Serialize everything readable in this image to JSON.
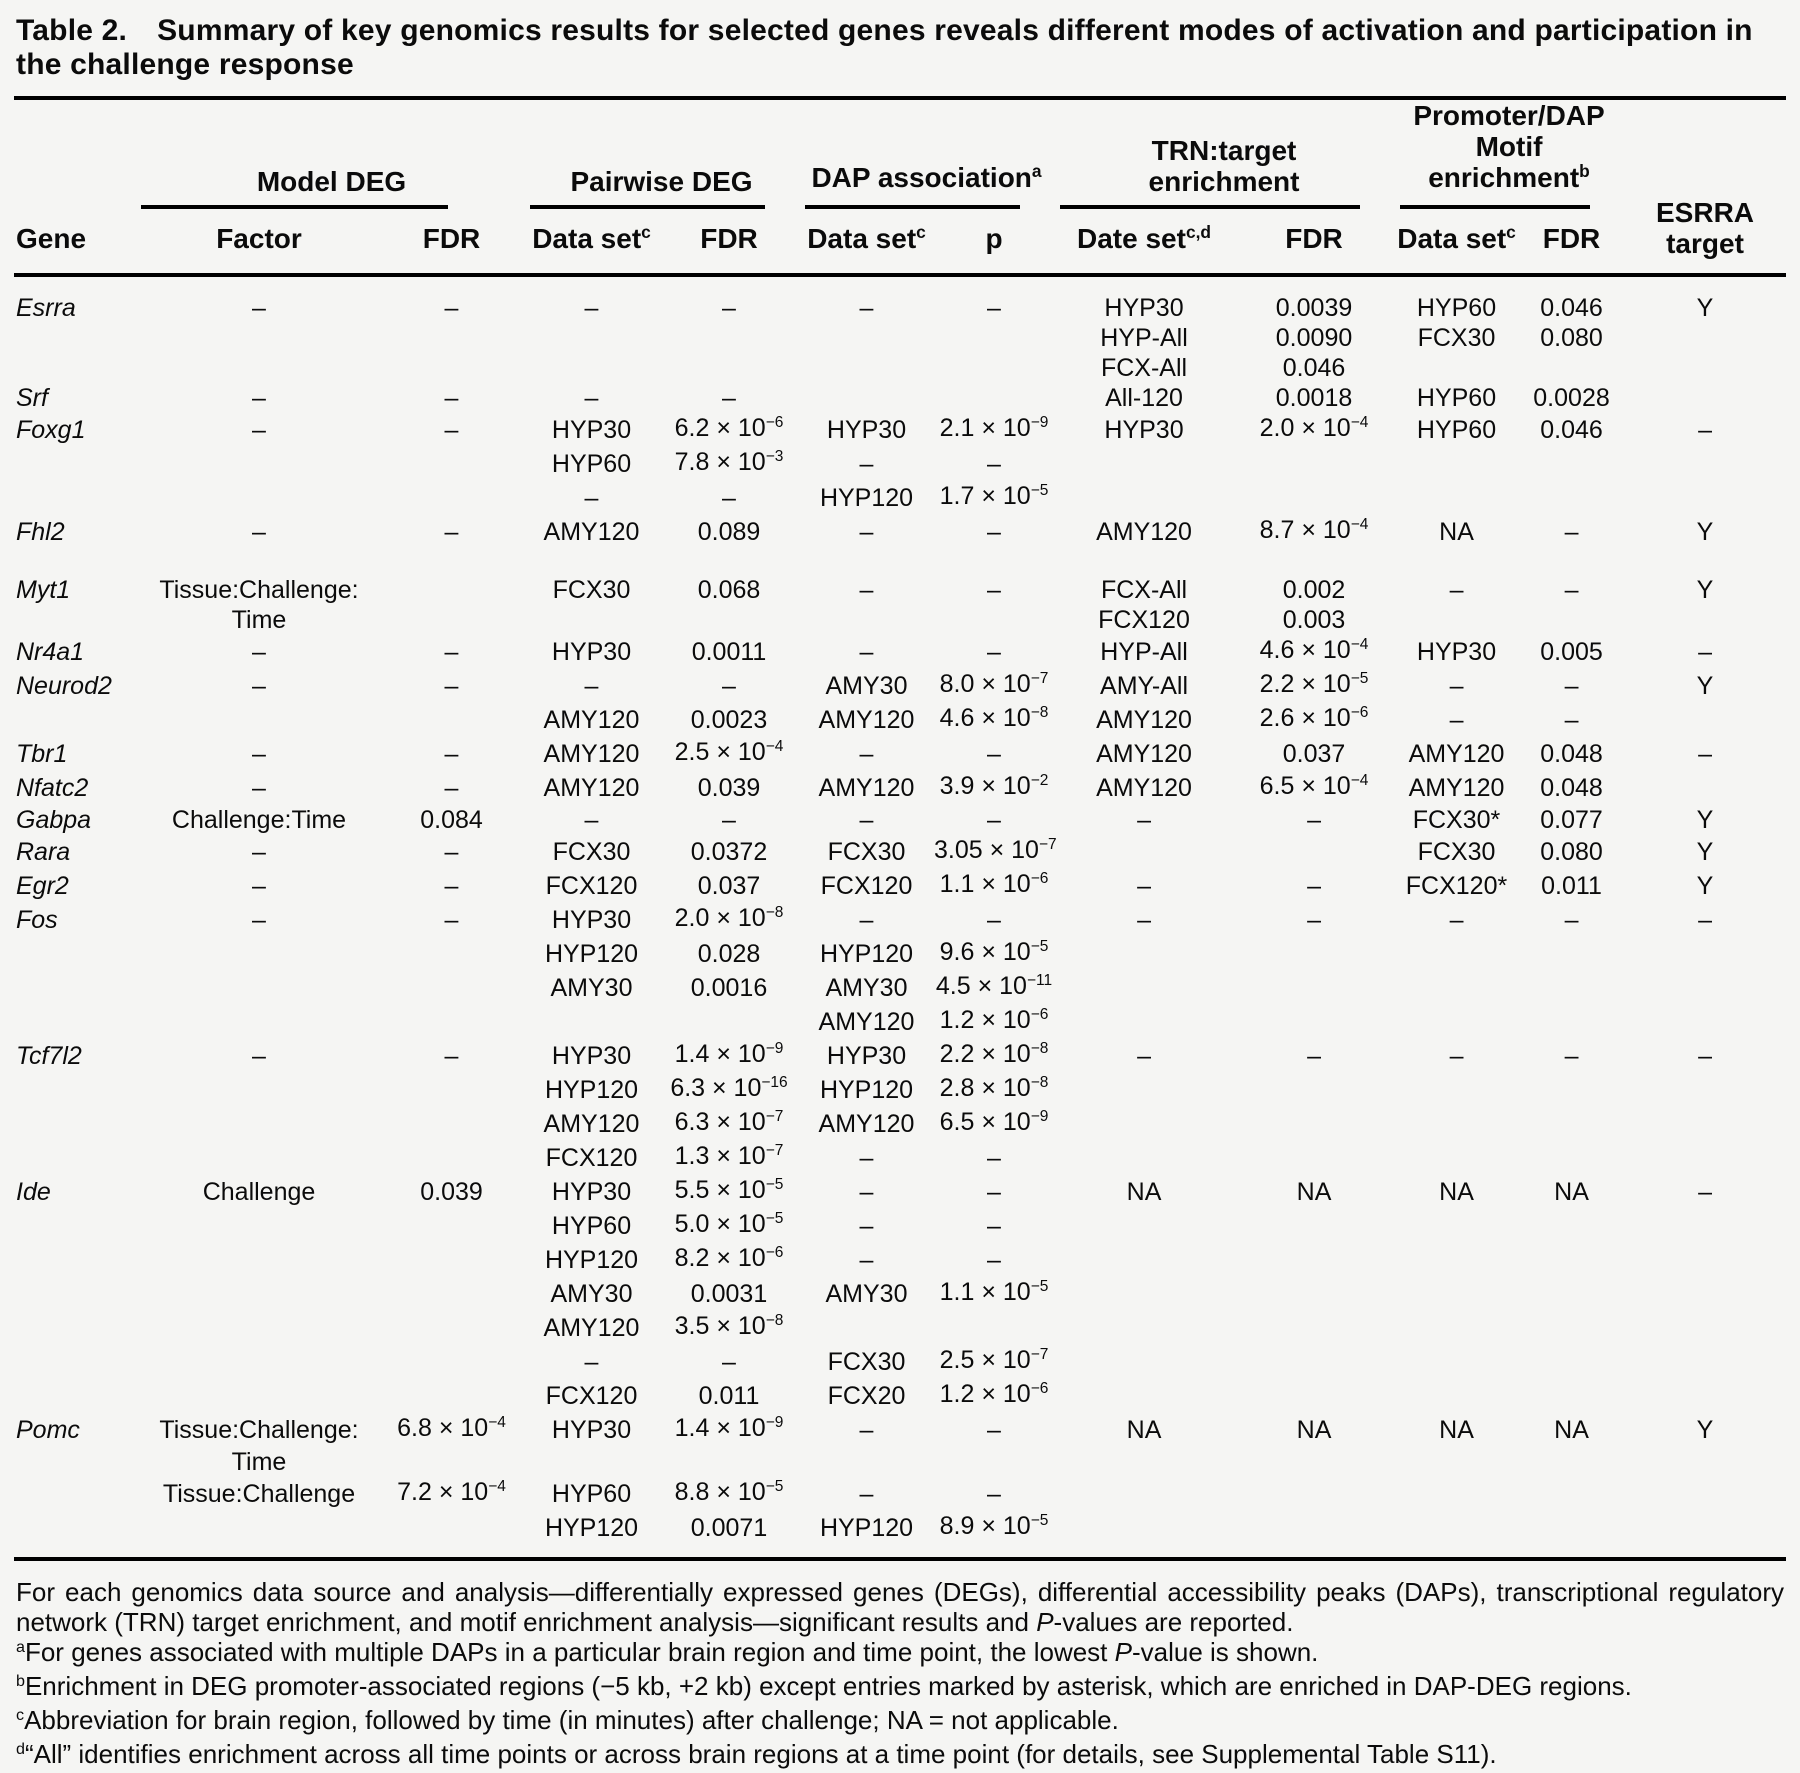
{
  "title": {
    "label": "Table 2.",
    "text": "Summary of key genomics results for selected genes reveals different modes of activation and participation in the challenge response"
  },
  "header": {
    "gene": "Gene",
    "esrra": "ESRRA\ntarget",
    "groups": [
      {
        "label": "Model DEG",
        "cols": [
          "Factor",
          "FDR"
        ]
      },
      {
        "label": "Pairwise DEG",
        "cols": [
          "Data set^{c}",
          "FDR"
        ]
      },
      {
        "label": "DAP association^{a}",
        "cols": [
          "Data set^{c}",
          "p"
        ]
      },
      {
        "label": "TRN:target\nenrichment",
        "cols": [
          "Date set^{c,d}",
          "FDR"
        ]
      },
      {
        "label": "Promoter/DAP\nMotif\nenrichment^{b}",
        "cols": [
          "Data set^{c}",
          "FDR"
        ]
      }
    ]
  },
  "columns": [
    "gene",
    "factor",
    "fdr-model",
    "dataset-pairwise",
    "fdr-pairwise",
    "dataset-dap",
    "p-dap",
    "dataset-trn",
    "fdr-trn",
    "dataset-promoter",
    "fdr-promoter",
    "esrra-target"
  ],
  "rows": [
    [
      "Esrra",
      "–",
      "–",
      "–",
      "–",
      "–",
      "–",
      "HYP30",
      "0.0039",
      "HYP60",
      "0.046",
      "Y"
    ],
    [
      "",
      "",
      "",
      "",
      "",
      "",
      "",
      "HYP-All",
      "0.0090",
      "FCX30",
      "0.080",
      ""
    ],
    [
      "",
      "",
      "",
      "",
      "",
      "",
      "",
      "FCX-All",
      "0.046",
      "",
      "",
      ""
    ],
    [
      "Srf",
      "–",
      "–",
      "–",
      "–",
      "",
      "",
      "All-120",
      "0.0018",
      "HYP60",
      "0.0028",
      ""
    ],
    [
      "Foxg1",
      "–",
      "–",
      "HYP30",
      "6.2 × 10^{−6}",
      "HYP30",
      "2.1 × 10^{−9}",
      "HYP30",
      "2.0 × 10^{−4}",
      "HYP60",
      "0.046",
      "–"
    ],
    [
      "",
      "",
      "",
      "HYP60",
      "7.8 × 10^{−3}",
      "–",
      "–",
      "",
      "",
      "",
      "",
      ""
    ],
    [
      "",
      "",
      "",
      "–",
      "–",
      "HYP120",
      "1.7 × 10^{−5}",
      "",
      "",
      "",
      "",
      ""
    ],
    [
      "Fhl2",
      "–",
      "–",
      "AMY120",
      "0.089",
      "–",
      "–",
      "AMY120",
      "8.7 × 10^{−4}",
      "NA",
      "–",
      "Y"
    ],
    [],
    [
      "Myt1",
      "Tissue:Challenge:",
      "",
      "FCX30",
      "0.068",
      "–",
      "–",
      "FCX-All",
      "0.002",
      "–",
      "–",
      "Y"
    ],
    [
      "",
      "Time",
      "",
      "",
      "",
      "",
      "",
      "FCX120",
      "0.003",
      "",
      "",
      ""
    ],
    [
      "Nr4a1",
      "–",
      "–",
      "HYP30",
      "0.0011",
      "–",
      "–",
      "HYP-All",
      "4.6 × 10^{−4}",
      "HYP30",
      "0.005",
      "–"
    ],
    [
      "Neurod2",
      "–",
      "–",
      "–",
      "–",
      "AMY30",
      "8.0 × 10^{−7}",
      "AMY-All",
      "2.2 × 10^{−5}",
      "–",
      "–",
      "Y"
    ],
    [
      "",
      "",
      "",
      "AMY120",
      "0.0023",
      "AMY120",
      "4.6 × 10^{−8}",
      "AMY120",
      "2.6 × 10^{−6}",
      "–",
      "–",
      ""
    ],
    [
      "Tbr1",
      "–",
      "–",
      "AMY120",
      "2.5 × 10^{−4}",
      "–",
      "–",
      "AMY120",
      "0.037",
      "AMY120",
      "0.048",
      "–"
    ],
    [
      "Nfatc2",
      "–",
      "–",
      "AMY120",
      "0.039",
      "AMY120",
      "3.9 × 10^{−2}",
      "AMY120",
      "6.5 × 10^{−4}",
      "AMY120",
      "0.048",
      ""
    ],
    [
      "Gabpa",
      "Challenge:Time",
      "0.084",
      "–",
      "–",
      "–",
      "–",
      "–",
      "–",
      "FCX30*",
      "0.077",
      "Y"
    ],
    [
      "Rara",
      "–",
      "–",
      "FCX30",
      "0.0372",
      "FCX30",
      "3.05 × 10^{−7}",
      "",
      "",
      "FCX30",
      "0.080",
      "Y"
    ],
    [
      "Egr2",
      "–",
      "–",
      "FCX120",
      "0.037",
      "FCX120",
      "1.1 × 10^{−6}",
      "–",
      "–",
      "FCX120*",
      "0.011",
      "Y"
    ],
    [
      "Fos",
      "–",
      "–",
      "HYP30",
      "2.0 × 10^{−8}",
      "–",
      "–",
      "–",
      "–",
      "–",
      "–",
      "–"
    ],
    [
      "",
      "",
      "",
      "HYP120",
      "0.028",
      "HYP120",
      "9.6 × 10^{−5}",
      "",
      "",
      "",
      "",
      ""
    ],
    [
      "",
      "",
      "",
      "AMY30",
      "0.0016",
      "AMY30",
      "4.5 × 10^{−11}",
      "",
      "",
      "",
      "",
      ""
    ],
    [
      "",
      "",
      "",
      "",
      "",
      "AMY120",
      "1.2 × 10^{−6}",
      "",
      "",
      "",
      "",
      ""
    ],
    [
      "Tcf7l2",
      "–",
      "–",
      "HYP30",
      "1.4 × 10^{−9}",
      "HYP30",
      "2.2 × 10^{−8}",
      "–",
      "–",
      "–",
      "–",
      "–"
    ],
    [
      "",
      "",
      "",
      "HYP120",
      "6.3 × 10^{−16}",
      "HYP120",
      "2.8 × 10^{−8}",
      "",
      "",
      "",
      "",
      ""
    ],
    [
      "",
      "",
      "",
      "AMY120",
      "6.3 × 10^{−7}",
      "AMY120",
      "6.5 × 10^{−9}",
      "",
      "",
      "",
      "",
      ""
    ],
    [
      "",
      "",
      "",
      "FCX120",
      "1.3 × 10^{−7}",
      "–",
      "–",
      "",
      "",
      "",
      "",
      ""
    ],
    [
      "Ide",
      "Challenge",
      "0.039",
      "HYP30",
      "5.5 × 10^{−5}",
      "–",
      "–",
      "NA",
      "NA",
      "NA",
      "NA",
      "–"
    ],
    [
      "",
      "",
      "",
      "HYP60",
      "5.0 × 10^{−5}",
      "–",
      "–",
      "",
      "",
      "",
      "",
      ""
    ],
    [
      "",
      "",
      "",
      "HYP120",
      "8.2 × 10^{−6}",
      "–",
      "–",
      "",
      "",
      "",
      "",
      ""
    ],
    [
      "",
      "",
      "",
      "AMY30",
      "0.0031",
      "AMY30",
      "1.1 × 10^{−5}",
      "",
      "",
      "",
      "",
      ""
    ],
    [
      "",
      "",
      "",
      "AMY120",
      "3.5 × 10^{−8}",
      "",
      "",
      "",
      "",
      "",
      "",
      ""
    ],
    [
      "",
      "",
      "",
      "–",
      "–",
      "FCX30",
      "2.5 × 10^{−7}",
      "",
      "",
      "",
      "",
      ""
    ],
    [
      "",
      "",
      "",
      "FCX120",
      "0.011",
      "FCX20",
      "1.2 × 10^{−6}",
      "",
      "",
      "",
      "",
      ""
    ],
    [
      "Pomc",
      "Tissue:Challenge:",
      "6.8 × 10^{−4}",
      "HYP30",
      "1.4 × 10^{−9}",
      "–",
      "–",
      "NA",
      "NA",
      "NA",
      "NA",
      "Y"
    ],
    [
      "",
      "Time",
      "",
      "",
      "",
      "",
      "",
      "",
      "",
      "",
      "",
      ""
    ],
    [
      "",
      "Tissue:Challenge",
      "7.2 × 10^{−4}",
      "HYP60",
      "8.8 × 10^{−5}",
      "–",
      "–",
      "",
      "",
      "",
      "",
      ""
    ],
    [
      "",
      "",
      "",
      "HYP120",
      "0.0071",
      "HYP120",
      "8.9 × 10^{−5}",
      "",
      "",
      "",
      "",
      ""
    ]
  ],
  "footnotes": [
    "For each genomics data source and analysis—differentially expressed genes (DEGs), differential accessibility peaks (DAPs), transcriptional regulatory network (TRN) target enrichment, and motif enrichment analysis—significant results and //P//-values are reported.",
    "^{a}For genes associated with multiple DAPs in a particular brain region and time point, the lowest //P//-value is shown.",
    "^{b}Enrichment in DEG promoter-associated regions (−5 kb, +2 kb) except entries marked by asterisk, which are enriched in DAP-DEG regions.",
    "^{c}Abbreviation for brain region, followed by time (in minutes) after challenge; NA = not applicable.",
    "^{d}“All” identifies enrichment across all time points or across brain regions at a time point (for details, see Supplemental Table S11)."
  ]
}
